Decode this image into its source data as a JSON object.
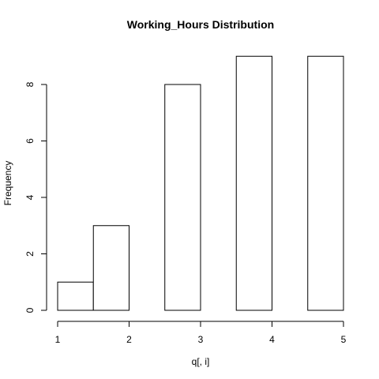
{
  "chart_data": {
    "type": "bar",
    "title": "Working_Hours Distribution",
    "xlabel": "q[, i]",
    "ylabel": "Frequency",
    "bins": [
      {
        "start": 1.0,
        "end": 1.5,
        "value": 1
      },
      {
        "start": 1.5,
        "end": 2.0,
        "value": 3
      },
      {
        "start": 2.0,
        "end": 2.5,
        "value": 0
      },
      {
        "start": 2.5,
        "end": 3.0,
        "value": 8
      },
      {
        "start": 3.0,
        "end": 3.5,
        "value": 0
      },
      {
        "start": 3.5,
        "end": 4.0,
        "value": 9
      },
      {
        "start": 4.0,
        "end": 4.5,
        "value": 0
      },
      {
        "start": 4.5,
        "end": 5.0,
        "value": 9
      }
    ],
    "xlim": [
      1,
      5
    ],
    "ylim": [
      0,
      9
    ],
    "x_ticks": [
      "1",
      "2",
      "3",
      "4",
      "5"
    ],
    "y_ticks": [
      "0",
      "2",
      "4",
      "6",
      "8"
    ],
    "grid": false,
    "legend": "none"
  }
}
